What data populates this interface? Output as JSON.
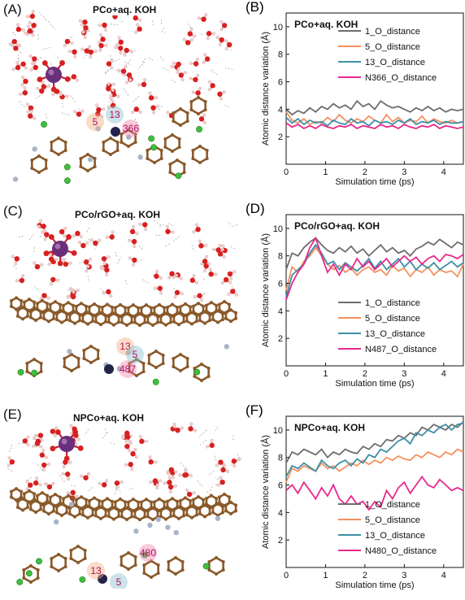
{
  "panels_left": [
    {
      "letter": "(A)",
      "title": "PCo+aq. KOH",
      "labels": [
        "5",
        "13",
        "366"
      ],
      "type": "bulk"
    },
    {
      "letter": "(C)",
      "title": "PCo/rGO+aq. KOH",
      "labels": [
        "13",
        "5",
        "487"
      ],
      "type": "sheet"
    },
    {
      "letter": "(E)",
      "title": "NPCo+aq. KOH",
      "labels": [
        "13",
        "5",
        "480"
      ],
      "type": "sheet-n"
    }
  ],
  "colors": {
    "s1": "#6d6d6d",
    "s5": "#f4905f",
    "s13": "#3e8fa6",
    "sN": "#e8288b",
    "water_O": "#d82020",
    "water_H": "#f4d2d2",
    "carbon": "#8a5a2b",
    "cobalt": "#6a2f7a",
    "nitrogen": "#a8b4c8",
    "potassium": "#3fbf3f"
  },
  "chart_data": [
    {
      "letter": "(B)",
      "type": "line",
      "title": "PCo+aq. KOH",
      "xlabel": "Simulation time (ps)",
      "ylabel": "Atomic distance variation (Å)",
      "xlim": [
        0,
        4.5
      ],
      "ylim": [
        0,
        11
      ],
      "xticks": [
        0,
        1,
        2,
        3,
        4
      ],
      "yticks": [
        2,
        4,
        6,
        8,
        10
      ],
      "legend_position": "top-right",
      "x": [
        0,
        0.15,
        0.3,
        0.45,
        0.6,
        0.75,
        0.9,
        1.05,
        1.2,
        1.35,
        1.5,
        1.65,
        1.8,
        1.95,
        2.1,
        2.25,
        2.4,
        2.55,
        2.7,
        2.85,
        3.0,
        3.15,
        3.3,
        3.45,
        3.6,
        3.75,
        3.9,
        4.05,
        4.2,
        4.35,
        4.5
      ],
      "series": [
        {
          "name": "1_O_distance",
          "color": "#6d6d6d",
          "values": [
            4.0,
            3.6,
            3.9,
            3.7,
            4.1,
            3.8,
            4.2,
            4.0,
            4.4,
            4.1,
            4.3,
            4.0,
            4.6,
            4.2,
            4.4,
            4.0,
            4.6,
            4.3,
            4.1,
            4.2,
            4.0,
            3.8,
            4.1,
            3.9,
            4.2,
            3.9,
            4.1,
            3.8,
            4.0,
            3.9,
            4.0
          ]
        },
        {
          "name": "5_O_distance",
          "color": "#f4905f",
          "values": [
            3.8,
            3.2,
            3.0,
            3.3,
            2.9,
            3.1,
            3.0,
            3.4,
            3.1,
            3.6,
            3.2,
            3.0,
            3.3,
            3.1,
            3.5,
            3.2,
            3.0,
            3.6,
            3.1,
            3.4,
            3.0,
            3.2,
            3.1,
            3.5,
            3.0,
            3.3,
            3.1,
            3.0,
            3.2,
            3.0,
            3.1
          ]
        },
        {
          "name": "13_O_distance",
          "color": "#3e8fa6",
          "values": [
            3.4,
            3.0,
            3.3,
            2.9,
            3.2,
            3.0,
            3.1,
            2.8,
            3.2,
            3.0,
            2.9,
            3.3,
            3.0,
            3.1,
            2.8,
            3.2,
            3.0,
            3.1,
            2.9,
            3.2,
            3.0,
            3.3,
            2.9,
            3.1,
            3.0,
            3.2,
            2.9,
            3.1,
            3.0,
            3.0,
            3.1
          ]
        },
        {
          "name": "N366_O_distance",
          "color": "#e8288b",
          "values": [
            3.0,
            2.7,
            2.9,
            2.6,
            2.8,
            2.6,
            2.9,
            2.7,
            2.6,
            2.8,
            2.7,
            2.9,
            2.6,
            2.8,
            2.7,
            2.6,
            2.9,
            2.7,
            2.8,
            2.6,
            2.9,
            2.7,
            2.6,
            2.8,
            2.7,
            2.9,
            2.6,
            2.8,
            2.7,
            2.6,
            2.7
          ]
        }
      ]
    },
    {
      "letter": "(D)",
      "type": "line",
      "title": "PCo/rGO+aq. KOH",
      "xlabel": "Simulation time (ps)",
      "ylabel": "Atomic distance variation (Å)",
      "xlim": [
        0,
        4.5
      ],
      "ylim": [
        0,
        11
      ],
      "xticks": [
        0,
        1,
        2,
        3,
        4
      ],
      "yticks": [
        2,
        4,
        6,
        8,
        10
      ],
      "legend_position": "bottom-right",
      "x": [
        0,
        0.15,
        0.3,
        0.45,
        0.6,
        0.75,
        0.9,
        1.05,
        1.2,
        1.35,
        1.5,
        1.65,
        1.8,
        1.95,
        2.1,
        2.25,
        2.4,
        2.55,
        2.7,
        2.85,
        3.0,
        3.15,
        3.3,
        3.45,
        3.6,
        3.75,
        3.9,
        4.05,
        4.2,
        4.35,
        4.5
      ],
      "series": [
        {
          "name": "1_O_distance",
          "color": "#6d6d6d",
          "values": [
            7.0,
            8.2,
            8.0,
            8.6,
            9.0,
            9.3,
            8.8,
            8.4,
            8.2,
            8.6,
            8.3,
            8.7,
            8.2,
            8.5,
            8.0,
            8.4,
            8.8,
            8.3,
            8.6,
            8.2,
            8.4,
            8.0,
            8.5,
            8.7,
            9.0,
            8.8,
            9.2,
            8.9,
            8.6,
            9.0,
            8.8
          ]
        },
        {
          "name": "5_O_distance",
          "color": "#f4905f",
          "values": [
            5.5,
            7.2,
            6.8,
            7.6,
            8.0,
            8.6,
            8.0,
            7.4,
            7.0,
            7.3,
            6.8,
            7.1,
            6.6,
            7.0,
            7.2,
            6.8,
            7.0,
            6.6,
            7.3,
            6.9,
            7.1,
            6.5,
            7.0,
            6.8,
            7.2,
            6.6,
            7.0,
            6.8,
            6.9,
            6.5,
            7.4
          ]
        },
        {
          "name": "13_O_distance",
          "color": "#3e8fa6",
          "values": [
            5.0,
            6.6,
            7.0,
            7.4,
            8.2,
            8.8,
            8.2,
            7.4,
            7.6,
            7.0,
            7.5,
            7.2,
            6.9,
            7.3,
            7.8,
            7.1,
            7.6,
            7.0,
            7.4,
            7.8,
            7.2,
            7.6,
            7.0,
            7.4,
            7.1,
            7.5,
            7.0,
            7.3,
            7.6,
            7.2,
            7.5
          ]
        },
        {
          "name": "N487_O_distance",
          "color": "#e8288b",
          "values": [
            4.8,
            6.0,
            6.8,
            7.4,
            8.6,
            9.3,
            8.0,
            6.8,
            7.4,
            6.6,
            7.4,
            7.0,
            7.8,
            7.2,
            7.6,
            7.0,
            7.4,
            7.8,
            7.2,
            7.6,
            8.0,
            7.6,
            7.9,
            7.4,
            7.8,
            8.0,
            7.6,
            8.1,
            8.0,
            7.8,
            8.1
          ]
        }
      ]
    },
    {
      "letter": "(F)",
      "type": "line",
      "title": "NPCo+aq. KOH",
      "xlabel": "Simulation time (ps)",
      "ylabel": "Atomic distance variation (Å)",
      "xlim": [
        0,
        4.5
      ],
      "ylim": [
        0,
        11
      ],
      "xticks": [
        0,
        1,
        2,
        3,
        4
      ],
      "yticks": [
        2,
        4,
        6,
        8,
        10
      ],
      "legend_position": "bottom-right",
      "x": [
        0,
        0.15,
        0.3,
        0.45,
        0.6,
        0.75,
        0.9,
        1.05,
        1.2,
        1.35,
        1.5,
        1.65,
        1.8,
        1.95,
        2.1,
        2.25,
        2.4,
        2.55,
        2.7,
        2.85,
        3.0,
        3.15,
        3.3,
        3.45,
        3.6,
        3.75,
        3.9,
        4.05,
        4.2,
        4.35,
        4.5
      ],
      "series": [
        {
          "name": "1_O_distance",
          "color": "#6d6d6d",
          "values": [
            7.6,
            8.4,
            8.2,
            8.6,
            8.4,
            8.2,
            8.6,
            8.0,
            8.4,
            8.2,
            8.6,
            8.4,
            8.3,
            8.8,
            8.6,
            9.0,
            8.8,
            9.3,
            9.2,
            9.6,
            9.4,
            9.8,
            9.6,
            10.2,
            10.0,
            10.4,
            10.2,
            10.0,
            10.4,
            10.2,
            10.6
          ]
        },
        {
          "name": "5_O_distance",
          "color": "#f4905f",
          "values": [
            6.2,
            7.2,
            7.0,
            7.4,
            7.2,
            7.0,
            7.6,
            7.2,
            7.4,
            7.0,
            7.3,
            7.6,
            7.4,
            7.8,
            7.5,
            7.8,
            7.6,
            8.0,
            7.8,
            8.1,
            7.9,
            7.8,
            8.2,
            8.0,
            8.4,
            8.2,
            8.0,
            8.4,
            8.2,
            8.6,
            8.4
          ]
        },
        {
          "name": "13_O_distance",
          "color": "#3e8fa6",
          "values": [
            6.6,
            7.4,
            7.2,
            7.6,
            7.3,
            7.0,
            7.8,
            7.4,
            7.2,
            7.6,
            7.8,
            7.4,
            7.9,
            7.6,
            8.2,
            8.0,
            8.6,
            8.4,
            8.8,
            9.2,
            9.4,
            9.0,
            9.8,
            9.6,
            10.0,
            9.8,
            10.2,
            10.4,
            10.0,
            10.4,
            10.5
          ]
        },
        {
          "name": "N480_O_distance",
          "color": "#e8288b",
          "values": [
            5.6,
            6.0,
            5.4,
            6.2,
            5.6,
            5.0,
            5.8,
            5.2,
            6.0,
            5.0,
            4.6,
            5.2,
            4.6,
            4.8,
            4.2,
            4.8,
            4.4,
            5.6,
            5.0,
            5.8,
            6.2,
            5.4,
            6.0,
            6.6,
            6.0,
            5.8,
            6.4,
            6.0,
            5.6,
            5.8,
            5.6
          ]
        }
      ]
    }
  ]
}
